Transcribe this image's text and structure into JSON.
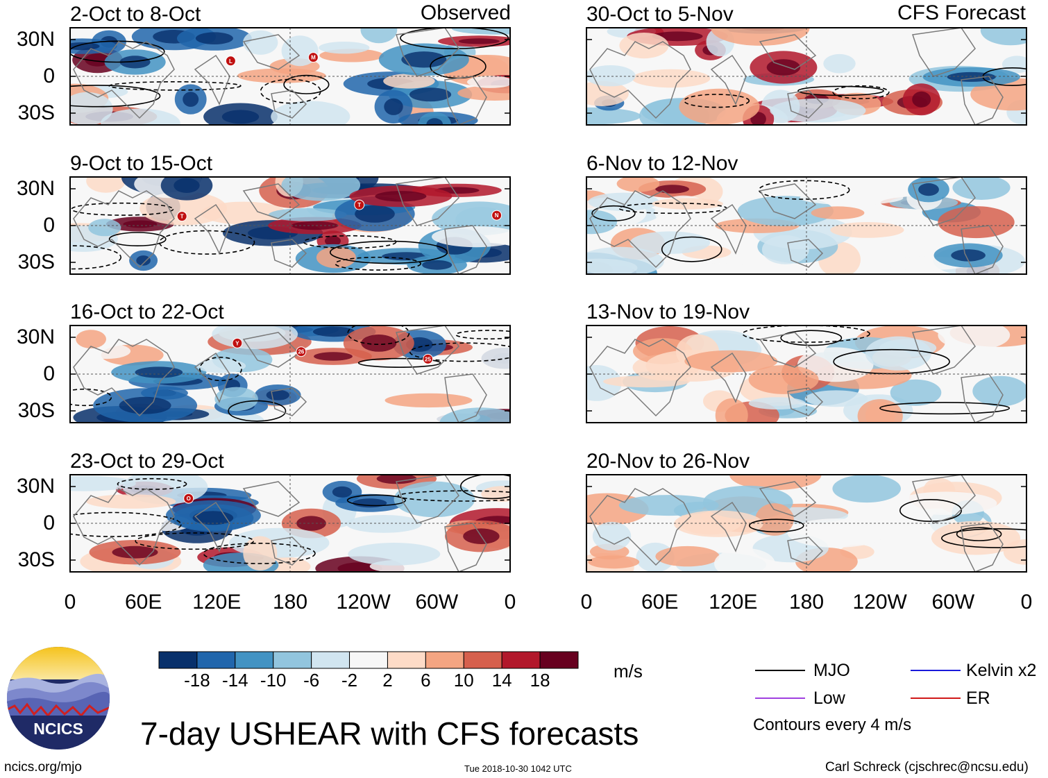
{
  "chart_data": {
    "type": "heatmap",
    "title": "7-day USHEAR with CFS forecasts",
    "units": "m/s",
    "columns": {
      "left": "Observed",
      "right": "CFS Forecast"
    },
    "panels": [
      {
        "id": "p1",
        "label": "2-Oct to 8-Oct",
        "group": "Observed",
        "storms": [
          "L",
          "M"
        ]
      },
      {
        "id": "p2",
        "label": "9-Oct to 15-Oct",
        "group": "Observed",
        "storms": [
          "T",
          "T",
          "N"
        ]
      },
      {
        "id": "p3",
        "label": "16-Oct to 22-Oct",
        "group": "Observed",
        "storms": [
          "Y",
          "26",
          "25"
        ]
      },
      {
        "id": "p4",
        "label": "23-Oct to 29-Oct",
        "group": "Observed",
        "storms": [
          "O"
        ]
      },
      {
        "id": "p5",
        "label": "30-Oct to 5-Nov",
        "group": "CFS Forecast",
        "storms": []
      },
      {
        "id": "p6",
        "label": "6-Nov to 12-Nov",
        "group": "CFS Forecast",
        "storms": []
      },
      {
        "id": "p7",
        "label": "13-Nov to 19-Nov",
        "group": "CFS Forecast",
        "storms": []
      },
      {
        "id": "p8",
        "label": "20-Nov to 26-Nov",
        "group": "CFS Forecast",
        "storms": []
      }
    ],
    "x_ticks": [
      "0",
      "60E",
      "120E",
      "180",
      "120W",
      "60W",
      "0"
    ],
    "y_ticks": [
      "30N",
      "0",
      "30S"
    ],
    "colorbar": {
      "levels": [
        "-18",
        "-14",
        "-10",
        "-6",
        "-2",
        "2",
        "6",
        "10",
        "14",
        "18"
      ],
      "colors": [
        "#08306b",
        "#2166ac",
        "#4393c3",
        "#92c5de",
        "#d1e5f0",
        "#f7f7f7",
        "#fddbc7",
        "#f4a582",
        "#d6604d",
        "#b2182b",
        "#67001f"
      ],
      "units": "m/s"
    },
    "legend": [
      {
        "label": "MJO",
        "color": "#000000"
      },
      {
        "label": "Kelvin x2",
        "color": "#1a1adb"
      },
      {
        "label": "Low",
        "color": "#a040e0"
      },
      {
        "label": "ER",
        "color": "#d01818"
      }
    ],
    "contour_note": "Contours every 4 m/s"
  },
  "footer": {
    "logo_text": "NCICS",
    "site": "ncics.org/mjo",
    "timestamp": "Tue 2018-10-30 1042 UTC",
    "author": "Carl Schreck (cjschrec@ncsu.edu)"
  }
}
